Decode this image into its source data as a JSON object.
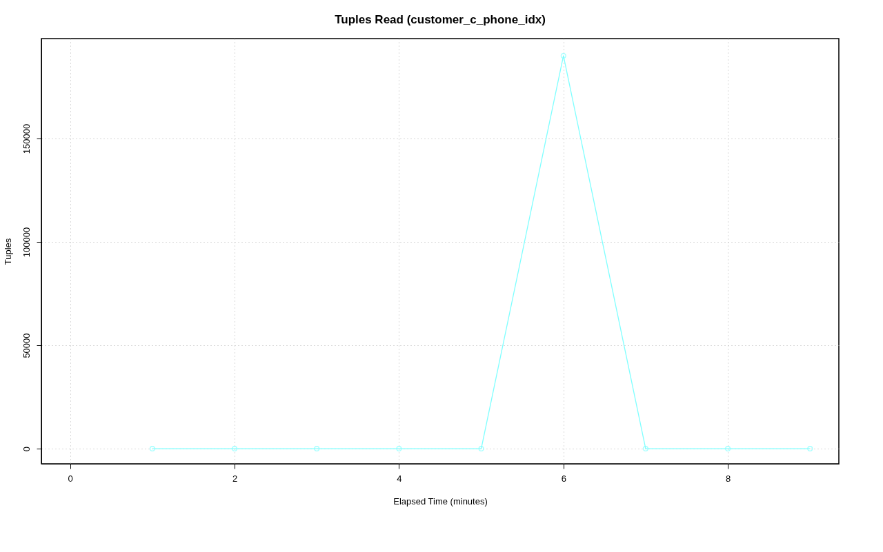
{
  "chart_data": {
    "type": "line",
    "title": "Tuples Read (customer_c_phone_idx)",
    "xlabel": "Elapsed Time (minutes)",
    "ylabel": "Tuples",
    "x": [
      1,
      2,
      3,
      4,
      5,
      6,
      7,
      8,
      9
    ],
    "series": [
      {
        "color": "#7fffff",
        "values": [
          0,
          0,
          0,
          0,
          0,
          190000,
          0,
          0,
          0
        ]
      }
    ],
    "xlim": [
      -0.35,
      9.35
    ],
    "xticks": [
      0,
      2,
      4,
      6,
      8
    ],
    "ylim": [
      -7300,
      198300
    ],
    "yticks": [
      0,
      50000,
      100000,
      150000
    ],
    "grid": true,
    "marker": "circle",
    "line_style": "solid"
  }
}
